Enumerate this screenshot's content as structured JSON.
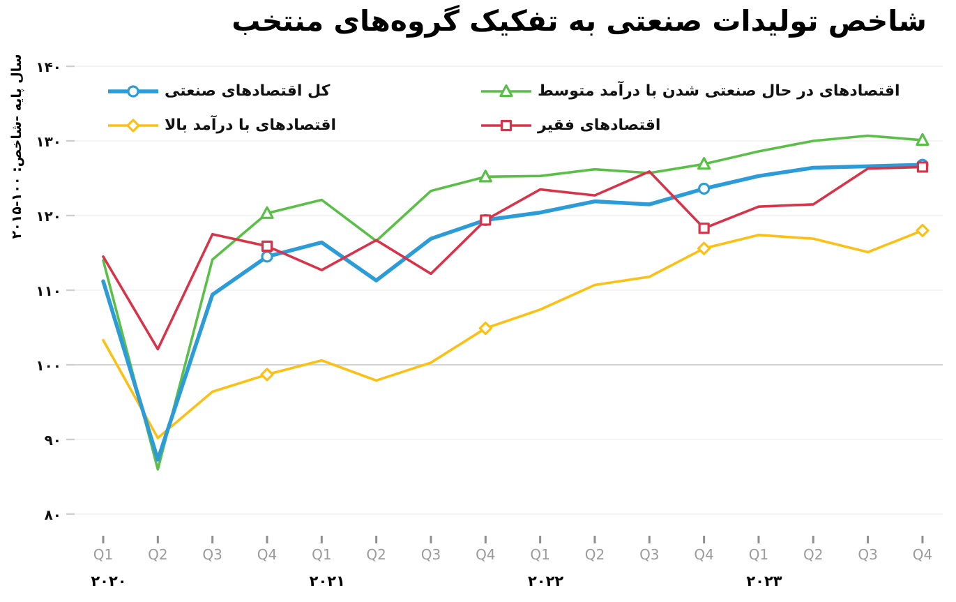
{
  "title": "شاخص تولیدات صنعتی به تفکیک گروه‌های منتخب",
  "y_axis_title": "سال پایه -شاخص: ۱۰۰-۲۰۱۵",
  "chart_data": {
    "type": "line",
    "title": "شاخص تولیدات صنعتی به تفکیک گروه‌های منتخب",
    "ylabel": "سال پایه -شاخص: ۱۰۰-۲۰۱۵",
    "ylim": [
      80,
      140
    ],
    "grid": {
      "minor_color": "#ededed",
      "major_color": "#c6c6c6",
      "tick_color": "#cfcfcf",
      "xtick_color": "#8f8f8f"
    },
    "legend_position": "top",
    "categories": [
      "Q1",
      "Q2",
      "Q3",
      "Q4",
      "Q1",
      "Q2",
      "Q3",
      "Q4",
      "Q1",
      "Q2",
      "Q3",
      "Q4",
      "Q1",
      "Q2",
      "Q3",
      "Q4"
    ],
    "x_axis_years": [
      {
        "label": "۲۰۲۰",
        "at_index": 0
      },
      {
        "label": "۲۰۲۱",
        "at_index": 4
      },
      {
        "label": "۲۰۲۲",
        "at_index": 8
      },
      {
        "label": "۲۰۲۳",
        "at_index": 12
      }
    ],
    "y_axis": {
      "ticks": [
        {
          "value": 80,
          "label": "۸۰"
        },
        {
          "value": 90,
          "label": "۹۰"
        },
        {
          "value": 100,
          "label": "۱۰۰"
        },
        {
          "value": 110,
          "label": "۱۱۰"
        },
        {
          "value": 120,
          "label": "۱۲۰"
        },
        {
          "value": 130,
          "label": "۱۳۰"
        },
        {
          "value": 140,
          "label": "۱۴۰"
        }
      ]
    },
    "series": [
      {
        "name": "total-industrial-economies",
        "label": "کل اقتصادهای صنعتی",
        "color": "#2b9cd8",
        "marker": "circle",
        "line_width": 5.5,
        "z": 2,
        "marker_indices": [
          3,
          7,
          11,
          15
        ],
        "values": [
          111.2,
          87.3,
          109.4,
          114.5,
          116.4,
          111.3,
          116.9,
          119.4,
          120.4,
          121.9,
          121.5,
          123.6,
          125.3,
          126.4,
          126.6,
          126.8
        ]
      },
      {
        "name": "high-income-economies",
        "label": "اقتصادهای با درآمد بالا",
        "color": "#fcc014",
        "marker": "diamond",
        "line_width": 3.6,
        "z": 0,
        "marker_indices": [
          3,
          7,
          11,
          15
        ],
        "values": [
          103.3,
          90.2,
          96.4,
          98.7,
          100.6,
          97.9,
          100.3,
          104.9,
          107.4,
          110.7,
          111.8,
          115.6,
          117.4,
          116.9,
          115.1,
          118.0
        ]
      },
      {
        "name": "industrializing-middle-income-economies",
        "label": "اقتصادهای در حال صنعتی شدن با درآمد متوسط",
        "color": "#5abf47",
        "marker": "triangle",
        "line_width": 3.6,
        "z": 1,
        "marker_indices": [
          3,
          7,
          11,
          15
        ],
        "values": [
          114.0,
          86.0,
          114.1,
          120.3,
          122.1,
          116.6,
          123.3,
          125.2,
          125.3,
          126.2,
          125.7,
          126.9,
          128.6,
          130.0,
          130.7,
          130.1
        ]
      },
      {
        "name": "poor-economies",
        "label": "اقتصادهای فقیر",
        "color": "#d93349",
        "marker": "square",
        "line_width": 3.6,
        "z": 3,
        "marker_indices": [
          3,
          7,
          11,
          15
        ],
        "values": [
          114.5,
          102.1,
          117.5,
          115.9,
          112.7,
          116.7,
          112.2,
          119.4,
          123.5,
          122.7,
          125.9,
          118.3,
          121.2,
          121.5,
          126.3,
          126.5
        ]
      }
    ]
  }
}
